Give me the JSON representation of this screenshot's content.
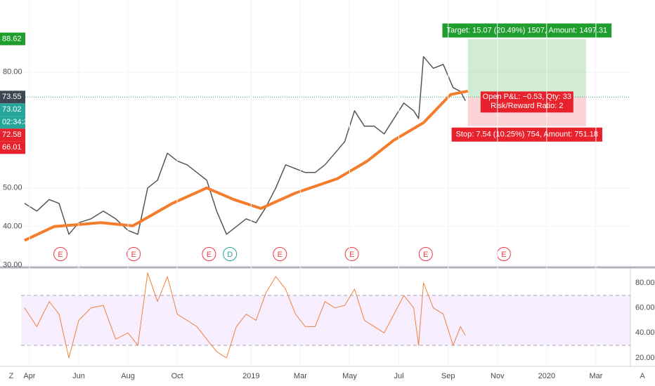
{
  "chart_data": [
    {
      "type": "line",
      "xlim": [
        2.66,
        27.4
      ],
      "ylim": [
        29.6,
        98.7
      ],
      "yticks": [
        {
          "value": 30,
          "label": "30.00"
        },
        {
          "value": 40,
          "label": "40.00"
        },
        {
          "value": 50,
          "label": "50.00"
        },
        {
          "value": 80,
          "label": "80.00"
        }
      ],
      "grid": true,
      "series": [
        {
          "color": "#555555",
          "x": [
            2.8,
            3.3,
            3.8,
            4.2,
            4.6,
            5.0,
            5.5,
            6.0,
            6.5,
            7.0,
            7.4,
            7.8,
            8.2,
            8.6,
            9.0,
            9.4,
            9.8,
            10.2,
            10.6,
            11.0,
            11.4,
            11.8,
            12.2,
            12.6,
            13.0,
            13.4,
            13.8,
            14.2,
            14.6,
            15.0,
            15.4,
            15.8,
            16.2,
            16.6,
            17.0,
            17.4,
            17.8,
            18.2,
            18.6,
            18.8,
            19.0,
            19.4,
            19.8,
            20.2,
            20.5,
            20.7
          ],
          "values": [
            46,
            44,
            47,
            46,
            38,
            41,
            42,
            44,
            42,
            39,
            38,
            50,
            52,
            59,
            57,
            56,
            54,
            52,
            44,
            38,
            40,
            42,
            41,
            45,
            50,
            56,
            55,
            54,
            54,
            56,
            59,
            62,
            70,
            66,
            66,
            64,
            68,
            72,
            70,
            68,
            84,
            81,
            82,
            76,
            75,
            72.6
          ]
        },
        {
          "color": "#f57c2a",
          "x": [
            2.8,
            4.0,
            5.9,
            7.2,
            8.8,
            10.2,
            11.3,
            12.4,
            13.8,
            15.5,
            16.7,
            17.8,
            19.0,
            20.1,
            20.8
          ],
          "values": [
            36.4,
            40,
            41,
            40.2,
            46,
            50,
            47,
            44.7,
            48.7,
            52.4,
            56.9,
            62.4,
            66.9,
            74.2,
            75.1
          ]
        }
      ],
      "last_price": 73.55,
      "price_labels": [
        {
          "value": 88.62,
          "color": "#1f9e2e"
        },
        {
          "value": 73.55,
          "color": "#3d4753"
        },
        {
          "value": 73.02,
          "color": "#26a69a",
          "countdown": "02:34:3"
        },
        {
          "value": 72.58,
          "color": "#e8222d"
        },
        {
          "value": 66.01,
          "color": "#e8222d"
        }
      ],
      "events": [
        {
          "x": 4.26,
          "label": "E",
          "color": "#f23645"
        },
        {
          "x": 7.23,
          "label": "E",
          "color": "#f23645"
        },
        {
          "x": 10.29,
          "label": "E",
          "color": "#f23645"
        },
        {
          "x": 11.14,
          "label": "D",
          "color": "#26a69a"
        },
        {
          "x": 13.17,
          "label": "E",
          "color": "#f23645"
        },
        {
          "x": 16.09,
          "label": "E",
          "color": "#f23645"
        },
        {
          "x": 19.09,
          "label": "E",
          "color": "#f23645"
        },
        {
          "x": 22.26,
          "label": "E",
          "color": "#f23645"
        }
      ],
      "position": {
        "x_start": 20.8,
        "x_end": 25.6,
        "entry": 73.55,
        "target": 88.62,
        "stop": 66.01,
        "target_text": "Target: 15.07 (20.49%) 1507, Amount: 1497.31",
        "pnl_text": "Open P&L: −0.53, Qty: 33",
        "rr_text": "Risk/Reward Ratio: 2",
        "stop_text": "Stop: 7.54 (10.25%) 754, Amount: 751.18"
      }
    },
    {
      "type": "line",
      "xlim": [
        2.66,
        27.4
      ],
      "ylim": [
        14.4,
        91.2
      ],
      "yticks": [
        {
          "value": 20,
          "label": "20.00"
        },
        {
          "value": 40,
          "label": "40.00"
        },
        {
          "value": 60,
          "label": "60.00"
        },
        {
          "value": 80,
          "label": "80.00"
        }
      ],
      "band": [
        30,
        70
      ],
      "xticks": [
        {
          "value": 3,
          "label": "Apr"
        },
        {
          "value": 5,
          "label": "Jun"
        },
        {
          "value": 7,
          "label": "Aug"
        },
        {
          "value": 9,
          "label": "Oct"
        },
        {
          "value": 12,
          "label": "2019"
        },
        {
          "value": 14,
          "label": "Mar"
        },
        {
          "value": 16,
          "label": "May"
        },
        {
          "value": 18,
          "label": "Jul"
        },
        {
          "value": 20,
          "label": "Sep"
        },
        {
          "value": 22,
          "label": "Nov"
        },
        {
          "value": 24,
          "label": "2020"
        },
        {
          "value": 26,
          "label": "Mar"
        }
      ],
      "series": [
        {
          "color": "#f0813a",
          "x": [
            2.8,
            3.3,
            3.8,
            4.2,
            4.6,
            5.0,
            5.5,
            6.0,
            6.5,
            7.0,
            7.4,
            7.8,
            8.2,
            8.6,
            9.0,
            9.4,
            9.8,
            10.2,
            10.6,
            11.0,
            11.4,
            11.8,
            12.2,
            12.6,
            13.0,
            13.4,
            13.8,
            14.2,
            14.6,
            15.0,
            15.4,
            15.8,
            16.2,
            16.6,
            17.0,
            17.4,
            17.8,
            18.2,
            18.6,
            18.8,
            19.0,
            19.4,
            19.8,
            20.2,
            20.5,
            20.7
          ],
          "values": [
            60,
            45,
            65,
            55,
            20,
            50,
            60,
            62,
            35,
            40,
            30,
            88,
            65,
            85,
            55,
            50,
            45,
            35,
            25,
            20,
            45,
            55,
            50,
            72,
            85,
            75,
            55,
            45,
            45,
            65,
            60,
            62,
            75,
            50,
            45,
            40,
            55,
            70,
            60,
            30,
            80,
            60,
            55,
            30,
            45,
            38
          ]
        }
      ]
    }
  ],
  "footer": {
    "left": "Z",
    "right": "A"
  }
}
